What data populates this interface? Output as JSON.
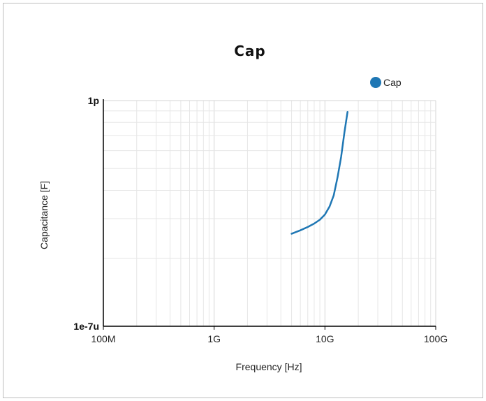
{
  "chart_data": {
    "type": "line",
    "title": "Cap",
    "xlabel": "Frequency [Hz]",
    "ylabel": "Capacitance [F]",
    "x_scale": "log",
    "y_scale": "log",
    "xlim": [
      100000000,
      100000000000
    ],
    "ylim": [
      "1e-7u",
      "1p"
    ],
    "x_ticks": [
      {
        "label": "100M"
      },
      {
        "label": "1G"
      },
      {
        "label": "10G"
      },
      {
        "label": "100G"
      }
    ],
    "y_ticks": [
      {
        "label": "1p"
      },
      {
        "label": "1e-7u"
      }
    ],
    "grid": true,
    "legend": "top-right",
    "series": [
      {
        "name": "Cap",
        "color": "#1f77b4",
        "x": [
          5000000000,
          6000000000,
          7000000000,
          8000000000,
          9000000000,
          10000000000,
          11000000000,
          12000000000,
          13000000000,
          14000000000,
          15000000000,
          16000000000
        ],
        "y_rel": [
          0.41,
          0.425,
          0.44,
          0.455,
          0.472,
          0.495,
          0.53,
          0.58,
          0.66,
          0.75,
          0.86,
          0.95
        ]
      }
    ]
  }
}
